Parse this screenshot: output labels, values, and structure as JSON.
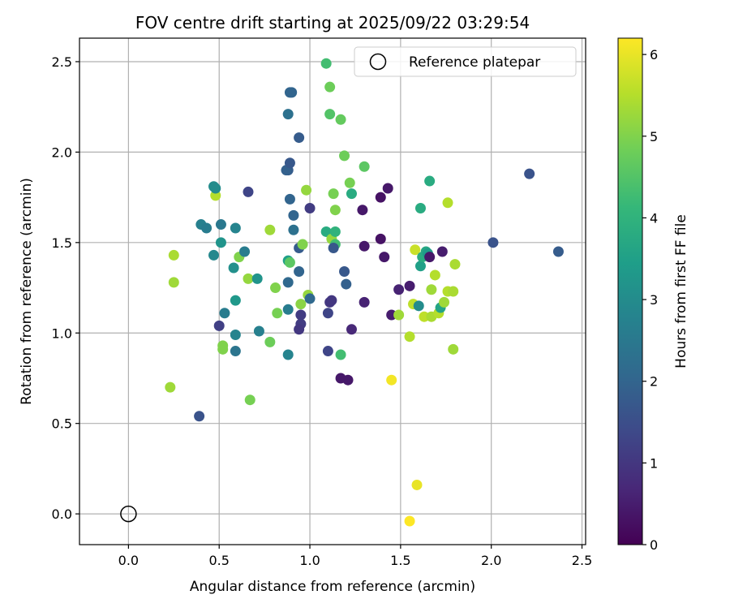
{
  "chart_data": {
    "type": "scatter",
    "title": "FOV centre drift starting at 2025/09/22 03:29:54",
    "xlabel": "Angular distance from reference (arcmin)",
    "ylabel": "Rotation from reference (arcmin)",
    "xlim": [
      -0.27,
      2.52
    ],
    "ylim": [
      -0.17,
      2.63
    ],
    "xticks": [
      0.0,
      0.5,
      1.0,
      1.5,
      2.0,
      2.5
    ],
    "xtick_labels": [
      "0.0",
      "0.5",
      "1.0",
      "1.5",
      "2.0",
      "2.5"
    ],
    "yticks": [
      0.0,
      0.5,
      1.0,
      1.5,
      2.0,
      2.5
    ],
    "ytick_labels": [
      "0.0",
      "0.5",
      "1.0",
      "1.5",
      "2.0",
      "2.5"
    ],
    "grid": true,
    "legend": {
      "placement": "top-right",
      "label": "Reference platepar"
    },
    "reference_point": {
      "x": 0.0,
      "y": 0.0
    },
    "colorbar": {
      "label": "Hours from first FF file",
      "range": [
        0,
        6.2
      ],
      "ticks": [
        0,
        1,
        2,
        3,
        4,
        5,
        6
      ],
      "tick_labels": [
        "0",
        "1",
        "2",
        "3",
        "4",
        "5",
        "6"
      ],
      "colormap_stops": [
        "#440154",
        "#482878",
        "#3e4989",
        "#31688e",
        "#26828e",
        "#1f9e89",
        "#35b779",
        "#6ece58",
        "#b5de2b",
        "#fde725"
      ]
    },
    "points_columns": [
      "x",
      "y",
      "hours"
    ],
    "points": [
      [
        0.39,
        0.54,
        1.6
      ],
      [
        0.23,
        0.7,
        5.3
      ],
      [
        0.67,
        0.63,
        4.9
      ],
      [
        1.59,
        0.16,
        6.0
      ],
      [
        1.55,
        -0.04,
        6.2
      ],
      [
        1.45,
        0.74,
        6.1
      ],
      [
        1.17,
        0.75,
        0.4
      ],
      [
        1.21,
        0.74,
        0.4
      ],
      [
        0.25,
        1.43,
        5.4
      ],
      [
        0.25,
        1.28,
        5.3
      ],
      [
        0.48,
        1.76,
        5.5
      ],
      [
        0.47,
        1.81,
        3.0
      ],
      [
        0.48,
        1.8,
        3.0
      ],
      [
        0.4,
        1.6,
        2.7
      ],
      [
        0.43,
        1.58,
        2.6
      ],
      [
        0.47,
        1.43,
        2.9
      ],
      [
        0.51,
        1.6,
        2.5
      ],
      [
        0.51,
        1.5,
        3.2
      ],
      [
        0.53,
        1.11,
        2.6
      ],
      [
        0.5,
        1.04,
        1.2
      ],
      [
        0.52,
        0.93,
        5.0
      ],
      [
        0.52,
        0.91,
        5.0
      ],
      [
        0.59,
        1.58,
        2.8
      ],
      [
        0.58,
        1.36,
        3.1
      ],
      [
        0.59,
        1.18,
        3.3
      ],
      [
        0.59,
        0.99,
        2.8
      ],
      [
        0.59,
        0.9,
        2.4
      ],
      [
        0.61,
        1.42,
        5.0
      ],
      [
        0.64,
        1.45,
        2.6
      ],
      [
        0.66,
        1.78,
        1.3
      ],
      [
        0.66,
        1.3,
        5.2
      ],
      [
        0.71,
        1.3,
        3.2
      ],
      [
        0.72,
        1.01,
        2.7
      ],
      [
        0.78,
        1.57,
        5.3
      ],
      [
        0.78,
        0.95,
        4.8
      ],
      [
        0.81,
        1.25,
        5.0
      ],
      [
        0.82,
        1.11,
        4.9
      ],
      [
        0.88,
        2.21,
        2.3
      ],
      [
        0.9,
        2.33,
        2.0
      ],
      [
        0.89,
        2.33,
        2.0
      ],
      [
        0.88,
        1.9,
        1.8
      ],
      [
        0.87,
        1.9,
        1.9
      ],
      [
        0.89,
        1.94,
        1.7
      ],
      [
        0.89,
        1.74,
        2.0
      ],
      [
        0.91,
        1.65,
        2.0
      ],
      [
        0.91,
        1.57,
        2.3
      ],
      [
        0.88,
        1.4,
        3.5
      ],
      [
        0.89,
        1.39,
        4.6
      ],
      [
        0.88,
        1.28,
        2.1
      ],
      [
        0.88,
        1.13,
        2.6
      ],
      [
        0.88,
        0.88,
        2.8
      ],
      [
        0.94,
        2.08,
        1.8
      ],
      [
        0.94,
        1.47,
        1.8
      ],
      [
        0.94,
        1.34,
        2.0
      ],
      [
        0.95,
        1.16,
        5.1
      ],
      [
        0.95,
        1.1,
        1.1
      ],
      [
        0.95,
        1.05,
        1.1
      ],
      [
        0.94,
        1.02,
        1.0
      ],
      [
        0.96,
        1.49,
        5.0
      ],
      [
        0.98,
        1.79,
        5.2
      ],
      [
        0.99,
        1.21,
        5.2
      ],
      [
        1.0,
        1.69,
        1.1
      ],
      [
        1.0,
        1.19,
        2.1
      ],
      [
        1.09,
        2.49,
        4.3
      ],
      [
        1.11,
        2.36,
        4.8
      ],
      [
        1.11,
        2.21,
        4.5
      ],
      [
        1.17,
        2.18,
        4.7
      ],
      [
        1.19,
        1.98,
        4.8
      ],
      [
        1.3,
        1.92,
        4.6
      ],
      [
        1.13,
        1.77,
        4.9
      ],
      [
        1.22,
        1.83,
        4.9
      ],
      [
        1.23,
        1.77,
        3.8
      ],
      [
        1.14,
        1.68,
        5.0
      ],
      [
        1.09,
        1.56,
        3.8
      ],
      [
        1.12,
        1.52,
        5.2
      ],
      [
        1.14,
        1.56,
        4.0
      ],
      [
        1.14,
        1.49,
        4.3
      ],
      [
        1.13,
        1.47,
        1.7
      ],
      [
        1.19,
        1.34,
        1.7
      ],
      [
        1.2,
        1.27,
        1.9
      ],
      [
        1.1,
        1.11,
        1.3
      ],
      [
        1.11,
        1.17,
        1.0
      ],
      [
        1.12,
        1.18,
        1.0
      ],
      [
        1.1,
        0.9,
        1.3
      ],
      [
        1.17,
        0.88,
        4.3
      ],
      [
        1.23,
        1.02,
        0.7
      ],
      [
        1.29,
        1.68,
        0.4
      ],
      [
        1.3,
        1.48,
        0.4
      ],
      [
        1.3,
        1.17,
        0.6
      ],
      [
        1.39,
        1.75,
        0.3
      ],
      [
        1.39,
        1.52,
        0.3
      ],
      [
        1.41,
        1.42,
        0.4
      ],
      [
        1.43,
        1.8,
        0.4
      ],
      [
        1.45,
        1.1,
        0.5
      ],
      [
        1.49,
        1.1,
        5.3
      ],
      [
        1.49,
        1.24,
        0.6
      ],
      [
        1.55,
        1.26,
        0.5
      ],
      [
        1.55,
        0.98,
        5.5
      ],
      [
        1.57,
        1.16,
        5.6
      ],
      [
        1.58,
        1.46,
        5.7
      ],
      [
        1.6,
        1.15,
        3.0
      ],
      [
        1.61,
        1.69,
        3.8
      ],
      [
        1.61,
        1.37,
        3.5
      ],
      [
        1.62,
        1.42,
        3.8
      ],
      [
        1.63,
        1.09,
        5.6
      ],
      [
        1.64,
        1.45,
        3.7
      ],
      [
        1.65,
        1.44,
        3.4
      ],
      [
        1.66,
        1.84,
        3.8
      ],
      [
        1.66,
        1.42,
        0.4
      ],
      [
        1.67,
        1.24,
        5.3
      ],
      [
        1.67,
        1.09,
        5.4
      ],
      [
        1.69,
        1.32,
        5.5
      ],
      [
        1.71,
        1.11,
        5.5
      ],
      [
        1.72,
        1.14,
        3.6
      ],
      [
        1.73,
        1.45,
        0.5
      ],
      [
        1.74,
        1.17,
        5.3
      ],
      [
        1.76,
        1.72,
        5.5
      ],
      [
        1.76,
        1.23,
        5.5
      ],
      [
        1.79,
        1.23,
        5.4
      ],
      [
        1.8,
        1.38,
        5.4
      ],
      [
        1.79,
        0.91,
        5.3
      ],
      [
        2.01,
        1.5,
        1.6
      ],
      [
        2.21,
        1.88,
        1.6
      ],
      [
        2.37,
        1.45,
        1.8
      ]
    ]
  }
}
